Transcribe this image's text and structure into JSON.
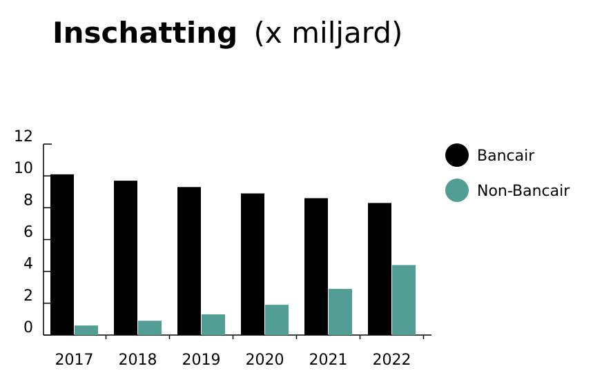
{
  "chart_data": {
    "type": "bar",
    "title": "Inschatting",
    "subtitle": "(x miljard)",
    "categories": [
      "2017",
      "2018",
      "2019",
      "2020",
      "2021",
      "2022"
    ],
    "series": [
      {
        "name": "Bancair",
        "color": "#000000",
        "values": [
          10.1,
          9.7,
          9.3,
          8.9,
          8.6,
          8.3
        ]
      },
      {
        "name": "Non-Bancair",
        "color": "#529e94",
        "values": [
          0.6,
          0.9,
          1.3,
          1.9,
          2.9,
          4.4
        ]
      }
    ],
    "ylim": [
      0,
      12
    ],
    "yticks": [
      "0",
      "2",
      "4",
      "6",
      "8",
      "10",
      "12"
    ],
    "grid": false,
    "legend": "right"
  }
}
